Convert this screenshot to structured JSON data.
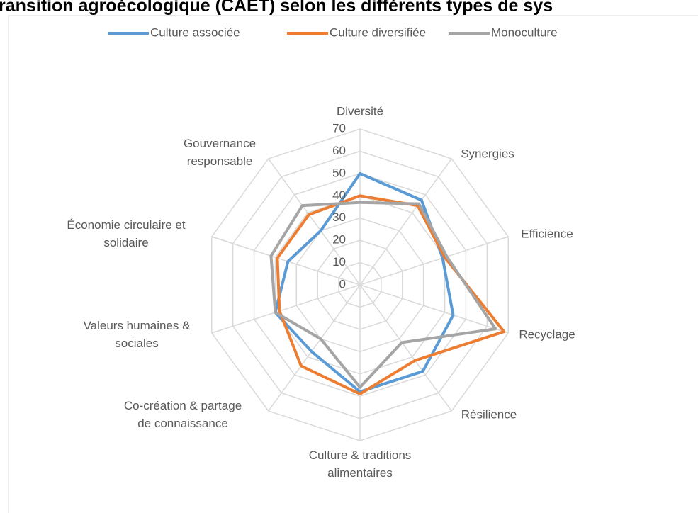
{
  "chart_data": {
    "type": "radar",
    "title": "ransition agroécologique (CAET) selon les différents types de sys",
    "categories": [
      "Diversité",
      "Synergies",
      "Efficience",
      "Recyclage",
      "Résilience",
      "Culture & traditions\nalimentaires",
      "Co-création & partage\nde connaissance",
      "Valeurs humaines &\nsociales",
      "Économie circulaire et\nsolidaire",
      "Gouvernance\nresponsable"
    ],
    "series": [
      {
        "name": "Culture associée",
        "color": "#5b9bd5",
        "values": [
          50,
          47,
          39,
          44,
          48,
          48,
          37,
          40,
          34,
          30
        ]
      },
      {
        "name": "Culture diversifiée",
        "color": "#ed7d31",
        "values": [
          40,
          44,
          40,
          68,
          42,
          49,
          45,
          38,
          39,
          39
        ]
      },
      {
        "name": "Monoculture",
        "color": "#a5a5a5",
        "values": [
          37,
          45,
          41,
          64,
          32,
          46,
          30,
          40,
          42,
          44
        ]
      }
    ],
    "ylim": [
      0,
      70
    ],
    "yticks": [
      0,
      10,
      20,
      30,
      40,
      50,
      60,
      70
    ],
    "grid": true,
    "legend": "top"
  }
}
